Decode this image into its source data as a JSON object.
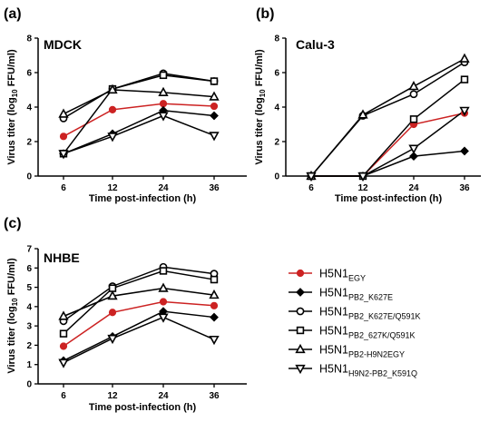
{
  "chart_data": [
    {
      "panel": "(a)",
      "title": "MDCK",
      "type": "line",
      "x": [
        6,
        12,
        24,
        36
      ],
      "xlabel": "Time post-infection (h)",
      "ylabel": "Virus titer (log10 FFU/ml)",
      "ylim": [
        0,
        8
      ],
      "yticks": [
        0,
        2,
        4,
        6,
        8
      ],
      "series": [
        {
          "key": "egy",
          "values": [
            2.3,
            3.85,
            4.2,
            4.05
          ]
        },
        {
          "key": "k627e",
          "values": [
            1.3,
            2.45,
            3.8,
            3.5
          ]
        },
        {
          "key": "k627e_q591k",
          "values": [
            3.35,
            5.05,
            5.95,
            5.5
          ]
        },
        {
          "key": "627k_q591k",
          "values": [
            1.3,
            5.05,
            5.85,
            5.5
          ]
        },
        {
          "key": "h9n2egy",
          "values": [
            3.6,
            5.0,
            4.85,
            4.6
          ]
        },
        {
          "key": "h9n2_k591q",
          "values": [
            1.3,
            2.3,
            3.5,
            2.35
          ]
        }
      ]
    },
    {
      "panel": "(b)",
      "title": "Calu-3",
      "type": "line",
      "x": [
        6,
        12,
        24,
        36
      ],
      "xlabel": "Time post-infection (h)",
      "ylabel": "Virus titer (log10 FFU/ml)",
      "ylim": [
        0,
        8
      ],
      "yticks": [
        0,
        2,
        4,
        6,
        8
      ],
      "series": [
        {
          "key": "egy",
          "values": [
            0,
            0,
            3.0,
            3.65
          ]
        },
        {
          "key": "k627e",
          "values": [
            0,
            0,
            1.15,
            1.45
          ]
        },
        {
          "key": "k627e_q591k",
          "values": [
            0,
            3.5,
            4.75,
            6.6
          ]
        },
        {
          "key": "627k_q591k",
          "values": [
            0,
            0,
            3.3,
            5.6
          ]
        },
        {
          "key": "h9n2egy",
          "values": [
            0,
            3.55,
            5.2,
            6.8
          ]
        },
        {
          "key": "h9n2_k591q",
          "values": [
            0,
            0,
            1.6,
            3.8
          ]
        }
      ]
    },
    {
      "panel": "(c)",
      "title": "NHBE",
      "type": "line",
      "x": [
        6,
        12,
        24,
        36
      ],
      "xlabel": "Time post-infection (h)",
      "ylabel": "Virus titer (log10 FFU/ml)",
      "ylim": [
        0,
        7
      ],
      "yticks": [
        0,
        1,
        2,
        3,
        4,
        5,
        6,
        7
      ],
      "series": [
        {
          "key": "egy",
          "values": [
            1.95,
            3.7,
            4.25,
            4.05
          ]
        },
        {
          "key": "k627e",
          "values": [
            1.2,
            2.45,
            3.75,
            3.45
          ]
        },
        {
          "key": "k627e_q591k",
          "values": [
            3.25,
            5.05,
            6.05,
            5.7
          ]
        },
        {
          "key": "627k_q591k",
          "values": [
            2.6,
            4.95,
            5.85,
            5.4
          ]
        },
        {
          "key": "h9n2egy",
          "values": [
            3.5,
            4.55,
            4.95,
            4.6
          ]
        },
        {
          "key": "h9n2_k591q",
          "values": [
            1.1,
            2.35,
            3.45,
            2.3
          ]
        }
      ]
    }
  ],
  "legend": [
    {
      "key": "egy",
      "base": "H5N1",
      "sub": "EGY",
      "color": "#cc2222",
      "marker": "circle-filled"
    },
    {
      "key": "k627e",
      "base": "H5N1",
      "sub": "PB2_K627E",
      "color": "#000000",
      "marker": "diamond-filled"
    },
    {
      "key": "k627e_q591k",
      "base": "H5N1",
      "sub": "PB2_K627E/Q591K",
      "color": "#000000",
      "marker": "circle-open"
    },
    {
      "key": "627k_q591k",
      "base": "H5N1",
      "sub": "PB2_627K/Q591K",
      "color": "#000000",
      "marker": "square-open"
    },
    {
      "key": "h9n2egy",
      "base": "H5N1",
      "sub": "PB2-H9N2EGY",
      "color": "#000000",
      "marker": "triangle-up-open"
    },
    {
      "key": "h9n2_k591q",
      "base": "H5N1",
      "sub": "H9N2-PB2_K591Q",
      "color": "#000000",
      "marker": "triangle-down-open"
    }
  ]
}
